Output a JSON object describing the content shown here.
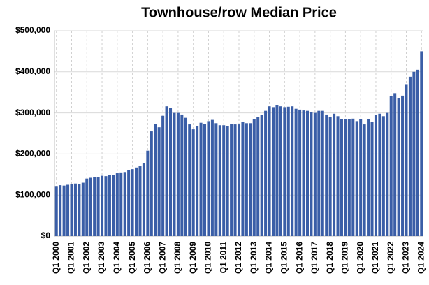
{
  "chart_data": {
    "type": "bar",
    "title": "Townhouse/row Median Price",
    "categories": [
      "Q1 2000",
      null,
      null,
      null,
      "Q1 2001",
      null,
      null,
      null,
      "Q1 2002",
      null,
      null,
      null,
      "Q1 2003",
      null,
      null,
      null,
      "Q1 2004",
      null,
      null,
      null,
      "Q1 2005",
      null,
      null,
      null,
      "Q1 2006",
      null,
      null,
      null,
      "Q1 2007",
      null,
      null,
      null,
      "Q1 2008",
      null,
      null,
      null,
      "Q1 2009",
      null,
      null,
      null,
      "Q1 2010",
      null,
      null,
      null,
      "Q1 2011",
      null,
      null,
      null,
      "Q1 2012",
      null,
      null,
      null,
      "Q1 2013",
      null,
      null,
      null,
      "Q1 2014",
      null,
      null,
      null,
      "Q1 2015",
      null,
      null,
      null,
      "Q1 2016",
      null,
      null,
      null,
      "Q1 2017",
      null,
      null,
      null,
      "Q1 2018",
      null,
      null,
      null,
      "Q1 2019",
      null,
      null,
      null,
      "Q1 2020",
      null,
      null,
      null,
      "Q1 2021",
      null,
      null,
      null,
      "Q1 2022",
      null,
      null,
      null,
      "Q1 2023",
      null,
      null,
      null,
      "Q1 2024"
    ],
    "values": [
      122000,
      124000,
      123000,
      125000,
      127000,
      128000,
      127000,
      130000,
      140000,
      142000,
      143000,
      144000,
      147000,
      146000,
      148000,
      149000,
      153000,
      155000,
      156000,
      160000,
      163000,
      167000,
      170000,
      178000,
      208000,
      255000,
      273000,
      265000,
      293000,
      316000,
      312000,
      300000,
      300000,
      296000,
      288000,
      272000,
      260000,
      268000,
      276000,
      273000,
      280000,
      283000,
      275000,
      270000,
      270000,
      268000,
      273000,
      272000,
      272000,
      278000,
      275000,
      275000,
      285000,
      290000,
      295000,
      305000,
      316000,
      314000,
      318000,
      316000,
      314000,
      315000,
      316000,
      310000,
      308000,
      306000,
      305000,
      302000,
      300000,
      305000,
      305000,
      296000,
      290000,
      298000,
      292000,
      285000,
      284000,
      285000,
      286000,
      280000,
      285000,
      272000,
      285000,
      278000,
      295000,
      298000,
      292000,
      300000,
      341000,
      348000,
      335000,
      342000,
      370000,
      388000,
      400000,
      405000,
      450000
    ],
    "color": "#3a5ea7",
    "ylim": [
      0,
      500000
    ],
    "yticks": [
      {
        "value": 0,
        "label": "$0"
      },
      {
        "value": 100000,
        "label": "$100,000"
      },
      {
        "value": 200000,
        "label": "$200,000"
      },
      {
        "value": 300000,
        "label": "$300,000"
      },
      {
        "value": 400000,
        "label": "$400,000"
      },
      {
        "value": 500000,
        "label": "$500,000"
      }
    ],
    "grid": true
  }
}
